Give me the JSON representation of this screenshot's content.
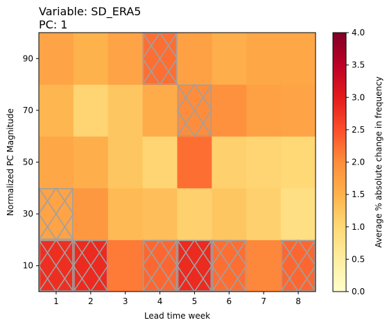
{
  "chart_data": {
    "type": "heatmap",
    "title_lines": [
      "Variable: SD_ERA5",
      "PC: 1"
    ],
    "xlabel": "Lead time week",
    "ylabel": "Normalized PC Magnitude",
    "x_categories": [
      "1",
      "2",
      "3",
      "4",
      "5",
      "6",
      "7",
      "8"
    ],
    "y_categories": [
      "10",
      "30",
      "50",
      "70",
      "90"
    ],
    "values": [
      [
        2.8,
        2.85,
        2.15,
        2.3,
        2.85,
        2.25,
        2.05,
        2.3
      ],
      [
        1.7,
        1.85,
        1.4,
        1.35,
        1.1,
        1.25,
        1.1,
        0.85
      ],
      [
        1.65,
        1.55,
        1.25,
        1.05,
        2.25,
        1.1,
        1.05,
        1.0
      ],
      [
        1.45,
        1.05,
        1.25,
        1.6,
        2.0,
        1.95,
        1.75,
        1.7
      ],
      [
        1.7,
        1.5,
        1.7,
        2.25,
        1.75,
        1.55,
        1.65,
        1.65
      ]
    ],
    "hatched": [
      [
        true,
        true,
        false,
        true,
        true,
        true,
        false,
        true
      ],
      [
        true,
        false,
        false,
        false,
        false,
        false,
        false,
        false
      ],
      [
        false,
        false,
        false,
        false,
        false,
        false,
        false,
        false
      ],
      [
        false,
        false,
        false,
        false,
        true,
        false,
        false,
        false
      ],
      [
        false,
        false,
        false,
        true,
        false,
        false,
        false,
        false
      ]
    ],
    "colorbar": {
      "label": "Average % absolute change in frequency",
      "min": 0.0,
      "max": 4.0,
      "ticks": [
        "0.0",
        "0.5",
        "1.0",
        "1.5",
        "2.0",
        "2.5",
        "3.0",
        "3.5",
        "4.0"
      ],
      "colormap": "YlOrRd"
    },
    "hatch_color": "#a0a0a0"
  }
}
